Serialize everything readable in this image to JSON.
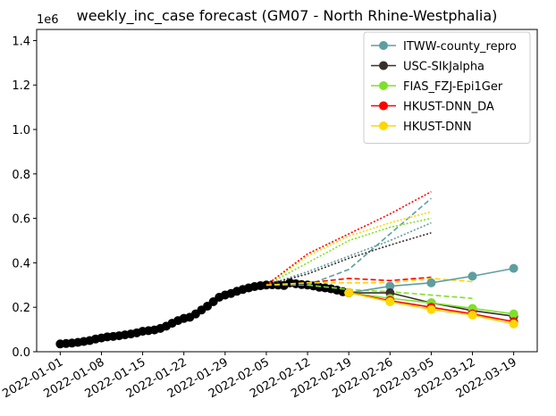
{
  "chart_data": {
    "type": "line",
    "title": "weekly_inc_case forecast (GM07 - North Rhine-Westphalia)",
    "y_offset_label": "1e6",
    "xlim": [
      "2021-12-28",
      "2022-03-23"
    ],
    "xticks": [
      "2022-01-01",
      "2022-01-08",
      "2022-01-15",
      "2022-01-22",
      "2022-01-29",
      "2022-02-05",
      "2022-02-12",
      "2022-02-19",
      "2022-02-26",
      "2022-03-05",
      "2022-03-12",
      "2022-03-19"
    ],
    "ylim": [
      0,
      1.45
    ],
    "yticks": [
      {
        "value": 0,
        "label": "0.0"
      },
      0.2,
      0.4,
      0.6,
      0.8,
      {
        "value": 1,
        "label": "1.0"
      },
      1.2,
      1.4
    ],
    "legend": "upper right",
    "series": [
      {
        "color": "#000000",
        "style": "solid",
        "marker": true,
        "x": [
          "2022-01-01",
          "2022-01-02",
          "2022-01-03",
          "2022-01-04",
          "2022-01-05",
          "2022-01-06",
          "2022-01-07",
          "2022-01-08",
          "2022-01-09",
          "2022-01-10",
          "2022-01-11",
          "2022-01-12",
          "2022-01-13",
          "2022-01-14",
          "2022-01-15",
          "2022-01-16",
          "2022-01-17",
          "2022-01-18",
          "2022-01-19",
          "2022-01-20",
          "2022-01-21",
          "2022-01-22",
          "2022-01-23",
          "2022-01-24",
          "2022-01-25",
          "2022-01-26",
          "2022-01-27",
          "2022-01-28",
          "2022-01-29",
          "2022-01-30",
          "2022-01-31",
          "2022-02-01",
          "2022-02-02",
          "2022-02-03",
          "2022-02-04",
          "2022-02-05",
          "2022-02-06",
          "2022-02-07",
          "2022-02-08",
          "2022-02-09",
          "2022-02-10",
          "2022-02-11",
          "2022-02-12",
          "2022-02-13",
          "2022-02-14",
          "2022-02-15",
          "2022-02-16",
          "2022-02-17",
          "2022-02-18",
          "2022-02-19"
        ],
        "values": [
          0.035,
          0.037,
          0.039,
          0.042,
          0.046,
          0.05,
          0.057,
          0.062,
          0.067,
          0.069,
          0.072,
          0.076,
          0.08,
          0.085,
          0.092,
          0.095,
          0.098,
          0.105,
          0.115,
          0.128,
          0.14,
          0.15,
          0.155,
          0.17,
          0.188,
          0.205,
          0.225,
          0.245,
          0.255,
          0.262,
          0.272,
          0.28,
          0.287,
          0.293,
          0.297,
          0.3,
          0.301,
          0.3,
          0.298,
          0.31,
          0.306,
          0.302,
          0.3,
          0.296,
          0.29,
          0.287,
          0.283,
          0.277,
          0.27,
          0.265
        ]
      },
      {
        "color": "#5f9ea0",
        "style": "dashed",
        "x": [
          "2022-02-05",
          "2022-02-12",
          "2022-02-19",
          "2022-02-26",
          "2022-03-05"
        ],
        "values": [
          0.3,
          0.3,
          0.37,
          0.53,
          0.69
        ]
      },
      {
        "color": "#5f9ea0",
        "style": "dotted",
        "x": [
          "2022-02-05",
          "2022-02-12",
          "2022-02-19",
          "2022-02-26",
          "2022-03-05"
        ],
        "values": [
          0.3,
          0.36,
          0.43,
          0.5,
          0.58
        ]
      },
      {
        "color": "#3b2f2a",
        "style": "dotted",
        "x": [
          "2022-02-05",
          "2022-02-12",
          "2022-02-19",
          "2022-02-26",
          "2022-03-05"
        ],
        "values": [
          0.3,
          0.35,
          0.42,
          0.48,
          0.535
        ]
      },
      {
        "color": "#7fe02b",
        "style": "dotted",
        "x": [
          "2022-02-05",
          "2022-02-12",
          "2022-02-19",
          "2022-02-26",
          "2022-03-05"
        ],
        "values": [
          0.3,
          0.4,
          0.5,
          0.56,
          0.6
        ]
      },
      {
        "color": "#ffd700",
        "style": "dotted",
        "x": [
          "2022-02-05",
          "2022-02-12",
          "2022-02-19",
          "2022-02-26",
          "2022-03-05"
        ],
        "values": [
          0.3,
          0.43,
          0.52,
          0.58,
          0.63
        ]
      },
      {
        "color": "#ff0000",
        "style": "dotted",
        "x": [
          "2022-02-05",
          "2022-02-12",
          "2022-02-19",
          "2022-02-26",
          "2022-03-05"
        ],
        "values": [
          0.3,
          0.44,
          0.53,
          0.62,
          0.72
        ]
      },
      {
        "color": "#ff0000",
        "style": "dashed",
        "x": [
          "2022-02-05",
          "2022-02-12",
          "2022-02-19",
          "2022-02-26",
          "2022-03-05"
        ],
        "values": [
          0.3,
          0.31,
          0.33,
          0.32,
          0.335
        ]
      },
      {
        "color": "#ffd700",
        "style": "dashed",
        "x": [
          "2022-02-05",
          "2022-02-12",
          "2022-02-19",
          "2022-02-26",
          "2022-03-05",
          "2022-03-12"
        ],
        "values": [
          0.3,
          0.31,
          0.31,
          0.31,
          0.33,
          0.315
        ]
      },
      {
        "color": "#7fe02b",
        "style": "dashed",
        "x": [
          "2022-02-12",
          "2022-02-19",
          "2022-02-26",
          "2022-03-05",
          "2022-03-12"
        ],
        "values": [
          0.3,
          0.28,
          0.27,
          0.255,
          0.24
        ]
      },
      {
        "name": "ITWW-county_repro",
        "color": "#5f9ea0",
        "style": "solid",
        "marker": true,
        "x": [
          "2022-02-19",
          "2022-02-26",
          "2022-03-05",
          "2022-03-12",
          "2022-03-19"
        ],
        "values": [
          0.265,
          0.295,
          0.31,
          0.34,
          0.375
        ]
      },
      {
        "name": "USC-SIkJalpha",
        "color": "#3b2f2a",
        "style": "solid",
        "marker": true,
        "x": [
          "2022-02-19",
          "2022-02-26",
          "2022-03-05",
          "2022-03-12",
          "2022-03-19"
        ],
        "values": [
          0.265,
          0.265,
          0.22,
          0.185,
          0.16
        ]
      },
      {
        "name": "FIAS_FZJ-Epi1Ger",
        "color": "#7fe02b",
        "style": "solid",
        "marker": true,
        "x": [
          "2022-02-19",
          "2022-02-26",
          "2022-03-05",
          "2022-03-12",
          "2022-03-19"
        ],
        "values": [
          0.265,
          0.24,
          0.22,
          0.195,
          0.17
        ]
      },
      {
        "name": "HKUST-DNN_DA",
        "color": "#ff0000",
        "style": "solid",
        "marker": true,
        "x": [
          "2022-02-19",
          "2022-02-26",
          "2022-03-05",
          "2022-03-12",
          "2022-03-19"
        ],
        "values": [
          0.265,
          0.23,
          0.2,
          0.17,
          0.135
        ]
      },
      {
        "name": "HKUST-DNN",
        "color": "#ffd700",
        "style": "solid",
        "marker": true,
        "x": [
          "2022-02-19",
          "2022-02-26",
          "2022-03-05",
          "2022-03-12",
          "2022-03-19"
        ],
        "values": [
          0.265,
          0.225,
          0.19,
          0.165,
          0.125
        ]
      }
    ]
  }
}
